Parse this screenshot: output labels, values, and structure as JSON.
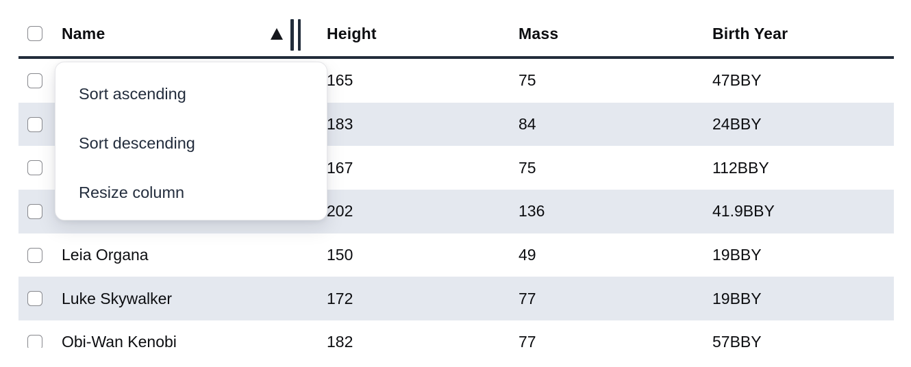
{
  "table": {
    "columns": [
      "Name",
      "Height",
      "Mass",
      "Birth Year"
    ],
    "sort": {
      "column": "Name",
      "direction": "ascending"
    },
    "rows": [
      {
        "name": "",
        "height": "165",
        "mass": "75",
        "birth_year": "47BBY"
      },
      {
        "name": "",
        "height": "183",
        "mass": "84",
        "birth_year": "24BBY"
      },
      {
        "name": "",
        "height": "167",
        "mass": "75",
        "birth_year": "112BBY"
      },
      {
        "name": "",
        "height": "202",
        "mass": "136",
        "birth_year": "41.9BBY"
      },
      {
        "name": "Leia Organa",
        "height": "150",
        "mass": "49",
        "birth_year": "19BBY"
      },
      {
        "name": "Luke Skywalker",
        "height": "172",
        "mass": "77",
        "birth_year": "19BBY"
      },
      {
        "name": "Obi-Wan Kenobi",
        "height": "182",
        "mass": "77",
        "birth_year": "57BBY"
      }
    ]
  },
  "menu": {
    "items": [
      "Sort ascending",
      "Sort descending",
      "Resize column"
    ]
  },
  "colors": {
    "row_stripe": "#e4e8ef",
    "header_border": "#222d3b",
    "menu_text": "#232d3d",
    "checkbox_border": "#87888d"
  }
}
